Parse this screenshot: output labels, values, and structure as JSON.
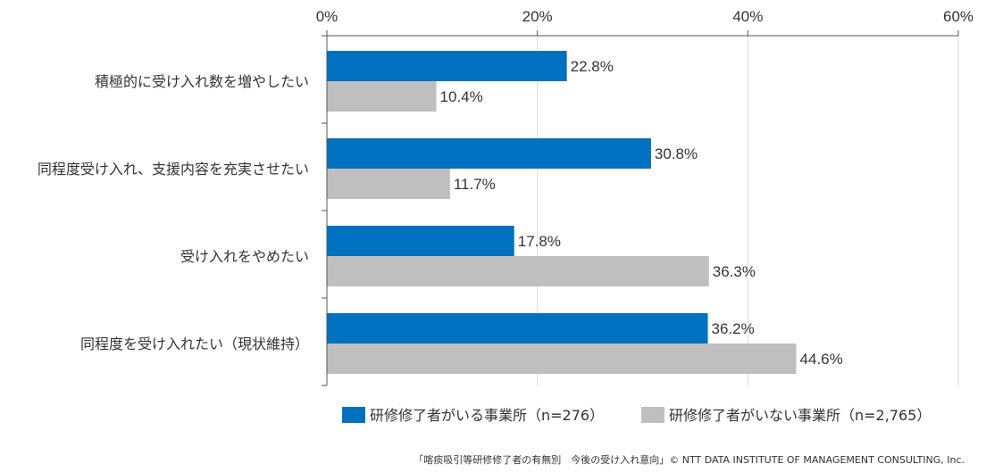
{
  "chart_data": {
    "type": "bar",
    "orientation": "horizontal",
    "categories": [
      "積極的に受け入れ数を増やしたい",
      "同程度受け入れ、支援内容を充実させたい",
      "受け入れをやめたい",
      "同程度を受け入れたい（現状維持）"
    ],
    "series": [
      {
        "name": "研修修了者がいる事業所（n=276）",
        "color": "#0070c0",
        "values": [
          22.8,
          30.8,
          17.8,
          36.2
        ],
        "labels": [
          "22.8%",
          "30.8%",
          "17.8%",
          "36.2%"
        ]
      },
      {
        "name": "研修修了者がいない事業所（n=2,765）",
        "color": "#bfbfbf",
        "values": [
          10.4,
          11.7,
          36.3,
          44.6
        ],
        "labels": [
          "10.4%",
          "11.7%",
          "36.3%",
          "44.6%"
        ]
      }
    ],
    "xlim": [
      0,
      60
    ],
    "ticks": [
      0,
      20,
      40,
      60
    ],
    "tick_labels": [
      "0%",
      "20%",
      "40%",
      "60%"
    ],
    "grid": true,
    "legend_position": "bottom",
    "title": "",
    "xlabel": "",
    "ylabel": ""
  },
  "footer": {
    "source": "「喀痰吸引等研修修了者の有無別　今後の受け入れ意向」© NTT DATA INSTITUTE OF MANAGEMENT CONSULTING, Inc."
  }
}
